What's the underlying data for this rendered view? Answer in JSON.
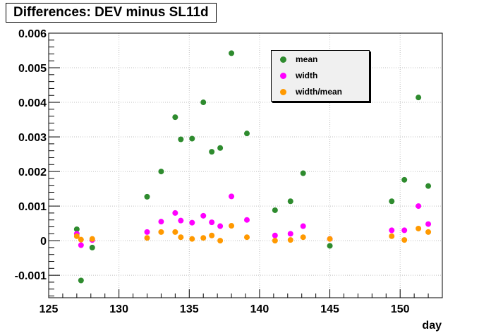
{
  "colors": {
    "mean": "#2e8b2e",
    "width": "#ff00ff",
    "width_mean": "#ff9900",
    "grid": "#c0c0c0",
    "legend_bg": "#f0f0f0"
  },
  "chart_data": {
    "type": "scatter",
    "title": "Differences: DEV minus SL11d",
    "xlabel": "day",
    "ylabel": "",
    "xlim": [
      125,
      153
    ],
    "ylim": [
      -0.00165,
      0.006
    ],
    "x_ticks": [
      125,
      130,
      135,
      140,
      145,
      150
    ],
    "y_ticks": [
      -0.001,
      0,
      0.001,
      0.002,
      0.003,
      0.004,
      0.005,
      0.006
    ],
    "x_tick_labels": [
      "125",
      "130",
      "135",
      "140",
      "145",
      "150"
    ],
    "y_tick_labels": [
      "-0.001",
      "0",
      "0.001",
      "0.002",
      "0.003",
      "0.004",
      "0.005",
      "0.006"
    ],
    "grid": true,
    "legend_position": "top-right",
    "series": [
      {
        "name": "mean",
        "color_key": "mean",
        "x": [
          127.0,
          127.3,
          128.1,
          132.0,
          133.0,
          134.0,
          134.4,
          135.2,
          136.0,
          136.6,
          137.2,
          138.0,
          139.1,
          141.1,
          142.2,
          143.1,
          145.0,
          149.4,
          150.3,
          151.3,
          152.0
        ],
        "y": [
          0.00033,
          -0.00115,
          -0.0002,
          0.00127,
          0.002,
          0.00357,
          0.00293,
          0.00295,
          0.004,
          0.00257,
          0.00268,
          0.00542,
          0.0031,
          0.00088,
          0.00114,
          0.00195,
          -0.00015,
          0.00114,
          0.00176,
          0.00414,
          0.00158
        ]
      },
      {
        "name": "width",
        "color_key": "width",
        "x": [
          127.0,
          127.3,
          128.1,
          132.0,
          133.0,
          134.0,
          134.4,
          135.2,
          136.0,
          136.6,
          137.2,
          138.0,
          139.1,
          141.1,
          142.2,
          143.1,
          145.0,
          149.4,
          150.3,
          151.3,
          152.0
        ],
        "y": [
          0.0002,
          -0.00013,
          2e-05,
          0.00025,
          0.00055,
          0.0008,
          0.00058,
          0.00052,
          0.00072,
          0.00053,
          0.00042,
          0.00128,
          0.0006,
          0.00015,
          0.0002,
          0.00042,
          5e-05,
          0.0003,
          0.0003,
          0.001,
          0.00048
        ]
      },
      {
        "name": "width/mean",
        "color_key": "width_mean",
        "x": [
          127.0,
          127.3,
          128.1,
          132.0,
          133.0,
          134.0,
          134.4,
          135.2,
          136.0,
          136.6,
          137.2,
          138.0,
          139.1,
          141.1,
          142.2,
          143.1,
          145.0,
          149.4,
          150.3,
          151.3,
          152.0
        ],
        "y": [
          0.00013,
          3e-05,
          5e-05,
          8e-05,
          0.00025,
          0.00025,
          0.0001,
          5e-05,
          8e-05,
          0.00015,
          0.0,
          0.00043,
          0.0001,
          0.0,
          2e-05,
          0.0001,
          5e-05,
          0.00013,
          2e-05,
          0.00035,
          0.00025
        ]
      }
    ]
  }
}
